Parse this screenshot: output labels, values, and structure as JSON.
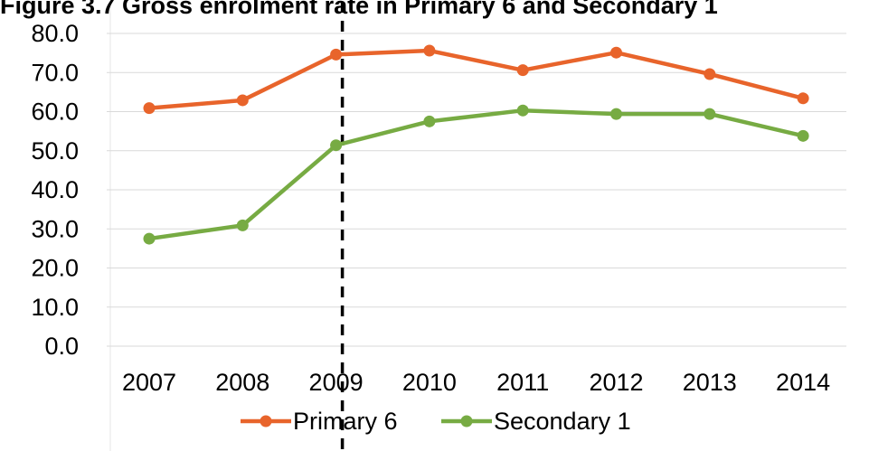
{
  "chart_data": {
    "type": "line",
    "title": "Figure 3.7 Gross enrolment rate in Primary 6 and Secondary 1",
    "categories": [
      "2007",
      "2008",
      "2009",
      "2010",
      "2011",
      "2012",
      "2013",
      "2014"
    ],
    "yticks": [
      "0.0",
      "10.0",
      "20.0",
      "30.0",
      "40.0",
      "50.0",
      "60.0",
      "70.0",
      "80.0"
    ],
    "ylim": [
      0,
      80
    ],
    "grid": true,
    "legend_position": "bottom",
    "reference_line": {
      "x": "2009",
      "style": "dashed",
      "color": "#000000"
    },
    "series": [
      {
        "name": "Primary 6",
        "color": "#e8642b",
        "values": [
          60.9,
          62.9,
          74.6,
          75.6,
          70.6,
          75.1,
          69.6,
          63.4
        ]
      },
      {
        "name": "Secondary 1",
        "color": "#77ab43",
        "values": [
          27.5,
          30.9,
          51.4,
          57.5,
          60.3,
          59.4,
          59.4,
          53.8
        ]
      }
    ]
  }
}
